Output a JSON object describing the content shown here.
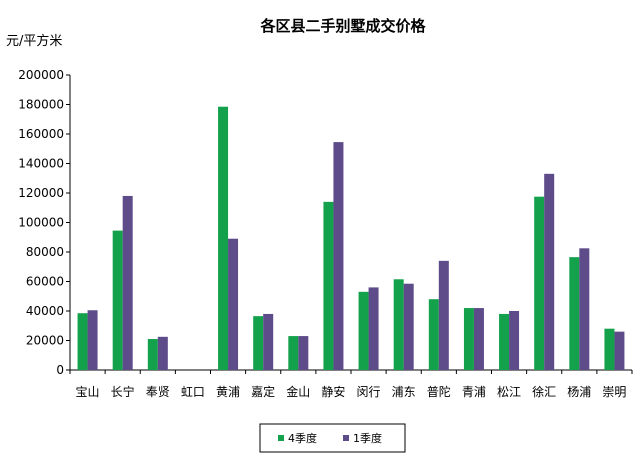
{
  "chart_data": {
    "type": "bar",
    "title": "各区县二手别墅成交价格",
    "ylabel": "元/平方米",
    "xlabel": "",
    "ylim": [
      0,
      200000
    ],
    "yticks": [
      "0",
      "20000",
      "40000",
      "60000",
      "80000",
      "100000",
      "120000",
      "140000",
      "160000",
      "180000",
      "200000"
    ],
    "grid": false,
    "legend_position": "bottom",
    "categories": [
      "宝山",
      "长宁",
      "奉贤",
      "虹口",
      "黄浦",
      "嘉定",
      "金山",
      "静安",
      "闵行",
      "浦东",
      "普陀",
      "青浦",
      "松江",
      "徐汇",
      "杨浦",
      "崇明"
    ],
    "series": [
      {
        "name": "4季度",
        "color": "#13a14b",
        "values": [
          38500,
          94500,
          21000,
          0,
          178500,
          36500,
          23000,
          114000,
          53000,
          61500,
          48000,
          42000,
          38000,
          117500,
          76500,
          28000
        ]
      },
      {
        "name": "1季度",
        "color": "#5d4b8a",
        "values": [
          40500,
          118000,
          22500,
          0,
          89000,
          38000,
          23000,
          154500,
          56000,
          58500,
          74000,
          42000,
          40000,
          133000,
          82500,
          26000
        ]
      }
    ]
  }
}
